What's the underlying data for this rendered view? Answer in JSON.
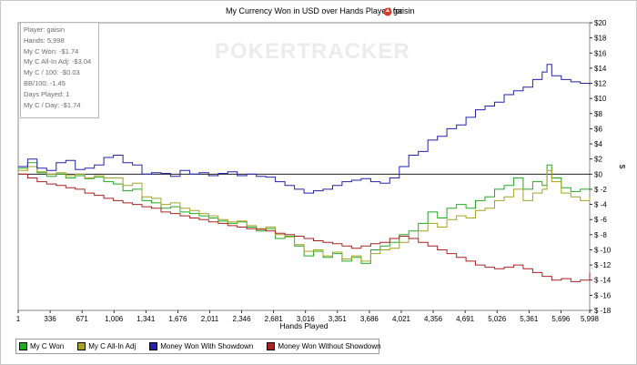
{
  "chart_data": {
    "type": "line",
    "title": "My Currency Won in USD over Hands Played for",
    "player_name": "gaisin",
    "xlabel": "Hands Played",
    "ylabel": "$",
    "xlim": [
      1,
      5998
    ],
    "ylim": [
      -18,
      20
    ],
    "x_ticks": [
      "1",
      "336",
      "671",
      "1,006",
      "1,341",
      "1,676",
      "2,011",
      "2,346",
      "2,681",
      "3,016",
      "3,351",
      "3,686",
      "4,021",
      "4,356",
      "4,691",
      "5,026",
      "5,361",
      "5,696",
      "5,998"
    ],
    "x_tick_values": [
      1,
      336,
      671,
      1006,
      1341,
      1676,
      2011,
      2346,
      2681,
      3016,
      3351,
      3686,
      4021,
      4356,
      4691,
      5026,
      5361,
      5696,
      5998
    ],
    "y_ticks": [
      "$20",
      "$18",
      "$16",
      "$14",
      "$12",
      "$10",
      "$8",
      "$6",
      "$4",
      "$2",
      "$0",
      "$ -2",
      "$ -4",
      "$ -6",
      "$ -8",
      "$ -10",
      "$ -12",
      "$ -14",
      "$ -16",
      "$ -18"
    ],
    "y_tick_values": [
      20,
      18,
      16,
      14,
      12,
      10,
      8,
      6,
      4,
      2,
      0,
      -2,
      -4,
      -6,
      -8,
      -10,
      -12,
      -14,
      -16,
      -18
    ],
    "legend_position": "bottom",
    "series": [
      {
        "name": "My C Won",
        "color": "#22aa22",
        "x": [
          1,
          100,
          200,
          300,
          400,
          500,
          600,
          700,
          800,
          900,
          1000,
          1100,
          1200,
          1300,
          1400,
          1500,
          1600,
          1700,
          1800,
          1900,
          2000,
          2100,
          2200,
          2300,
          2400,
          2500,
          2600,
          2700,
          2800,
          2900,
          3000,
          3100,
          3200,
          3300,
          3400,
          3500,
          3600,
          3700,
          3800,
          3900,
          4000,
          4100,
          4200,
          4300,
          4400,
          4500,
          4600,
          4700,
          4800,
          4900,
          5000,
          5100,
          5200,
          5300,
          5400,
          5500,
          5550,
          5600,
          5700,
          5800,
          5900,
          5998
        ],
        "y": [
          0.8,
          1.5,
          0.2,
          -0.3,
          0,
          -0.5,
          -0.2,
          -0.6,
          -0.4,
          -1.0,
          -1.3,
          -2.2,
          -2.0,
          -3.5,
          -3.8,
          -4.5,
          -4.3,
          -5.0,
          -5.2,
          -5.5,
          -5.8,
          -6.2,
          -6.5,
          -6.3,
          -7.0,
          -7.5,
          -7.2,
          -8.5,
          -8.2,
          -9.5,
          -10.8,
          -10.2,
          -11.0,
          -10.5,
          -11.5,
          -11.0,
          -11.8,
          -10.0,
          -9.5,
          -9.0,
          -8.0,
          -7.5,
          -6.5,
          -5.0,
          -5.8,
          -4.5,
          -4.0,
          -4.5,
          -3.5,
          -3.0,
          -2.0,
          -1.5,
          -0.5,
          -2.0,
          -1.0,
          -1.5,
          1.2,
          -0.5,
          -1.8,
          -2.3,
          -2.0,
          -1.7
        ]
      },
      {
        "name": "My C All-In Adj",
        "color": "#a4a424",
        "x": [
          1,
          100,
          200,
          300,
          400,
          500,
          600,
          700,
          800,
          900,
          1000,
          1100,
          1200,
          1300,
          1400,
          1500,
          1600,
          1700,
          1800,
          1900,
          2000,
          2100,
          2200,
          2300,
          2400,
          2500,
          2600,
          2700,
          2800,
          2900,
          3000,
          3100,
          3200,
          3300,
          3400,
          3500,
          3600,
          3700,
          3800,
          3900,
          4000,
          4100,
          4200,
          4300,
          4400,
          4500,
          4600,
          4700,
          4800,
          4900,
          5000,
          5100,
          5200,
          5300,
          5400,
          5500,
          5550,
          5600,
          5700,
          5800,
          5900,
          5998
        ],
        "y": [
          0.5,
          1.0,
          0.3,
          0,
          0.2,
          -0.2,
          0,
          -0.5,
          -0.2,
          -0.5,
          -0.5,
          -1.5,
          -1.2,
          -3.0,
          -3.2,
          -4.0,
          -3.8,
          -4.5,
          -4.8,
          -5.2,
          -5.5,
          -6.0,
          -6.3,
          -6.2,
          -6.8,
          -7.2,
          -7.0,
          -8.0,
          -8.3,
          -9.3,
          -10.2,
          -10.0,
          -10.8,
          -10.3,
          -11.2,
          -10.8,
          -11.5,
          -10.5,
          -10.0,
          -9.8,
          -9.0,
          -8.5,
          -7.5,
          -6.5,
          -7.0,
          -6.0,
          -5.5,
          -5.8,
          -4.8,
          -4.5,
          -3.5,
          -3.0,
          -2.0,
          -3.5,
          -2.5,
          -2.0,
          0.5,
          -1.0,
          -2.5,
          -3.0,
          -3.5,
          -3.0
        ]
      },
      {
        "name": "Money Won With Showdown",
        "color": "#2222aa",
        "x": [
          1,
          100,
          200,
          300,
          400,
          500,
          600,
          700,
          800,
          900,
          1000,
          1100,
          1200,
          1300,
          1400,
          1500,
          1600,
          1700,
          1800,
          1900,
          2000,
          2100,
          2200,
          2300,
          2400,
          2500,
          2600,
          2700,
          2800,
          2900,
          3000,
          3100,
          3200,
          3300,
          3400,
          3500,
          3600,
          3700,
          3800,
          3900,
          4000,
          4100,
          4200,
          4300,
          4400,
          4500,
          4600,
          4700,
          4800,
          4900,
          5000,
          5100,
          5200,
          5300,
          5400,
          5500,
          5550,
          5600,
          5700,
          5800,
          5900,
          5998
        ],
        "y": [
          1.0,
          2.0,
          0.8,
          0.5,
          1.5,
          1.8,
          0.6,
          0.8,
          1.2,
          2.2,
          2.5,
          1.5,
          1.2,
          0,
          0.2,
          0.1,
          -0.3,
          0.5,
          0,
          0.2,
          -0.2,
          0.1,
          0.3,
          -0.2,
          0,
          -0.3,
          -0.4,
          -1.0,
          -1.5,
          -2.0,
          -2.5,
          -2.2,
          -2.0,
          -1.5,
          -1.0,
          -0.8,
          -0.6,
          -1.0,
          -1.2,
          -0.5,
          1.0,
          2.5,
          3.0,
          4.5,
          5.0,
          6.0,
          6.5,
          7.5,
          8.5,
          9.0,
          9.5,
          10.5,
          11.0,
          11.5,
          12.5,
          13.5,
          14.5,
          13.0,
          12.5,
          12.2,
          12.0,
          11.8
        ]
      },
      {
        "name": "Money Won Without Showdown",
        "color": "#aa2222",
        "x": [
          1,
          100,
          200,
          300,
          400,
          500,
          600,
          700,
          800,
          900,
          1000,
          1100,
          1200,
          1300,
          1400,
          1500,
          1600,
          1700,
          1800,
          1900,
          2000,
          2100,
          2200,
          2300,
          2400,
          2500,
          2600,
          2700,
          2800,
          2900,
          3000,
          3100,
          3200,
          3300,
          3400,
          3500,
          3600,
          3700,
          3800,
          3900,
          4000,
          4100,
          4200,
          4300,
          4400,
          4500,
          4600,
          4700,
          4800,
          4900,
          5000,
          5100,
          5200,
          5300,
          5400,
          5500,
          5600,
          5700,
          5800,
          5900,
          5998
        ],
        "y": [
          0,
          -0.5,
          -1.0,
          -1.3,
          -1.5,
          -1.8,
          -2.0,
          -2.5,
          -2.8,
          -3.2,
          -3.5,
          -3.8,
          -4.0,
          -4.3,
          -4.5,
          -5.0,
          -5.2,
          -5.5,
          -5.8,
          -6.0,
          -6.3,
          -6.5,
          -6.8,
          -7.0,
          -7.2,
          -7.3,
          -7.5,
          -7.8,
          -8.0,
          -8.2,
          -8.5,
          -8.8,
          -9.0,
          -9.2,
          -9.5,
          -9.8,
          -9.5,
          -9.2,
          -9.0,
          -8.5,
          -8.2,
          -8.5,
          -9.0,
          -9.5,
          -10.0,
          -10.5,
          -11.0,
          -11.5,
          -12.0,
          -12.3,
          -12.5,
          -12.3,
          -12.0,
          -12.5,
          -13.0,
          -13.5,
          -14.0,
          -13.8,
          -14.2,
          -14.0,
          -13.0
        ]
      }
    ]
  },
  "stats": [
    "Player: gaisin",
    "Hands: 5,998",
    "My C Won: -$1.74",
    "My C All-In Adj: -$3.04",
    "My C / 100: -$0.03",
    "BB/100: -1.45",
    "Days Played: 1",
    "My C / Day: -$1.74"
  ],
  "watermark": "POKERTRACKER"
}
